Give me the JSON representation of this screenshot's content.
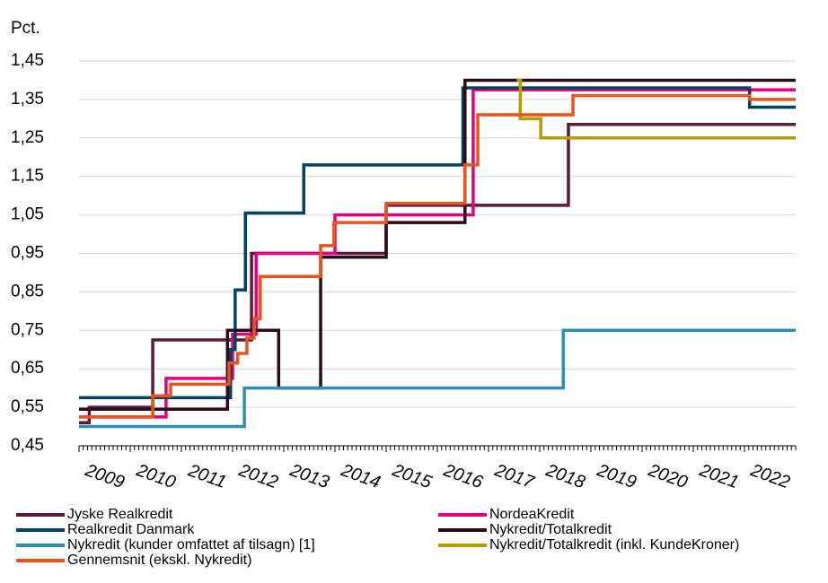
{
  "chart_data": {
    "type": "line",
    "step": true,
    "ylabel": "Pct.",
    "xlim": [
      2009,
      2023
    ],
    "xticks": [
      2009,
      2010,
      2011,
      2012,
      2013,
      2014,
      2015,
      2016,
      2017,
      2018,
      2019,
      2020,
      2021,
      2022
    ],
    "ylim": [
      0.45,
      1.45
    ],
    "yticks": [
      {
        "value": 0.45,
        "label": "0,45"
      },
      {
        "value": 0.55,
        "label": "0,55"
      },
      {
        "value": 0.65,
        "label": "0,65"
      },
      {
        "value": 0.75,
        "label": "0,75"
      },
      {
        "value": 0.85,
        "label": "0,85"
      },
      {
        "value": 0.95,
        "label": "0,95"
      },
      {
        "value": 1.05,
        "label": "1,05"
      },
      {
        "value": 1.15,
        "label": "1,15"
      },
      {
        "value": 1.25,
        "label": "1,25"
      },
      {
        "value": 1.35,
        "label": "1,35"
      },
      {
        "value": 1.45,
        "label": "1,45"
      }
    ],
    "grid": true,
    "series": [
      {
        "name": "Jyske Realkredit",
        "color": "#5c1a3a",
        "x": [
          2009,
          2009.2,
          2010.44,
          2012.37,
          2015.0,
          2018.56,
          2023
        ],
        "values": [
          0.51,
          0.55,
          0.725,
          0.95,
          1.075,
          1.285,
          1.285
        ]
      },
      {
        "name": "NordeaKredit",
        "color": "#e5007d",
        "x": [
          2009,
          2010.7,
          2012.0,
          2012.46,
          2014.0,
          2016.7,
          2023
        ],
        "values": [
          0.525,
          0.625,
          0.74,
          0.95,
          1.05,
          1.375,
          1.375
        ]
      },
      {
        "name": "Realkredit Danmark",
        "color": "#00445f",
        "x": [
          2009,
          2011.96,
          2012.05,
          2012.25,
          2013.39,
          2016.5,
          2022.1,
          2023
        ],
        "values": [
          0.575,
          0.7,
          0.855,
          1.055,
          1.18,
          1.38,
          1.33,
          1.33
        ]
      },
      {
        "name": "Nykredit/Totalkredit",
        "color": "#2b0a1c",
        "x": [
          2009,
          2011.9,
          2012.9,
          2013.72,
          2015.0,
          2016.54,
          2023
        ],
        "values": [
          0.545,
          0.75,
          0.6,
          0.94,
          1.03,
          1.4,
          1.4
        ]
      },
      {
        "name": "Nykredit (kunder omfattet af tilsagn) [1]",
        "color": "#2f8fb0",
        "x": [
          2009,
          2012.23,
          2018.46,
          2023
        ],
        "values": [
          0.5,
          0.6,
          0.75,
          0.75
        ]
      },
      {
        "name": "Nykredit/Totalkredit (inkl. KundeKroner)",
        "color": "#b59c00",
        "x": [
          2017.55,
          2017.62,
          2017.95,
          2018.02,
          2023
        ],
        "values": [
          1.4,
          1.3,
          1.3,
          1.25,
          1.25
        ]
      },
      {
        "name": "Gennemsnit (ekskl. Nykredit)",
        "color": "#e8541e",
        "x": [
          2009,
          2010.44,
          2010.79,
          2011.93,
          2012.1,
          2012.28,
          2012.42,
          2012.54,
          2013.72,
          2013.98,
          2015.0,
          2016.54,
          2016.79,
          2018.65,
          2022.1,
          2023
        ],
        "values": [
          0.525,
          0.58,
          0.61,
          0.665,
          0.69,
          0.73,
          0.78,
          0.89,
          0.97,
          1.03,
          1.08,
          1.18,
          1.31,
          1.36,
          1.35,
          1.35
        ]
      }
    ]
  }
}
